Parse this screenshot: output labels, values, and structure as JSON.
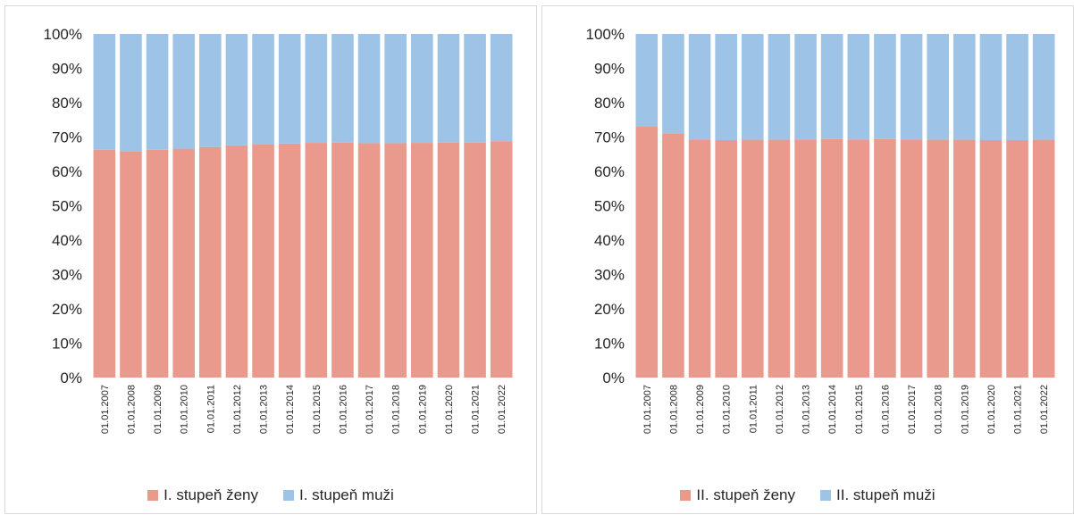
{
  "chart_data": [
    {
      "type": "bar",
      "stacked": true,
      "normalized": true,
      "categories": [
        "01.01.2007",
        "01.01.2008",
        "01.01.2009",
        "01.01.2010",
        "01.01.2011",
        "01.01.2012",
        "01.01.2013",
        "01.01.2014",
        "01.01.2015",
        "01.01.2016",
        "01.01.2017",
        "01.01.2018",
        "01.01.2019",
        "01.01.2020",
        "01.01.2021",
        "01.01.2022"
      ],
      "series": [
        {
          "name": "I. stupeň ženy",
          "color": "#ea9a8c",
          "values": [
            66.3,
            65.9,
            66.3,
            66.6,
            67.1,
            67.6,
            67.8,
            68.1,
            68.3,
            68.4,
            68.2,
            68.2,
            68.3,
            68.4,
            68.4,
            68.8
          ]
        },
        {
          "name": "I. stupeň muži",
          "color": "#9dc3e6",
          "values": [
            33.7,
            34.1,
            33.7,
            33.4,
            32.9,
            32.4,
            32.2,
            31.9,
            31.7,
            31.6,
            31.8,
            31.8,
            31.7,
            31.6,
            31.6,
            31.2
          ]
        }
      ],
      "yticks": [
        "0%",
        "10%",
        "20%",
        "30%",
        "40%",
        "50%",
        "60%",
        "70%",
        "80%",
        "90%",
        "100%"
      ],
      "ylim": [
        0,
        100
      ],
      "grid": false,
      "legend": "bottom"
    },
    {
      "type": "bar",
      "stacked": true,
      "normalized": true,
      "categories": [
        "01.01.2007",
        "01.01.2008",
        "01.01.2009",
        "01.01.2010",
        "01.01.2011",
        "01.01.2012",
        "01.01.2013",
        "01.01.2014",
        "01.01.2015",
        "01.01.2016",
        "01.01.2017",
        "01.01.2018",
        "01.01.2019",
        "01.01.2020",
        "01.01.2021",
        "01.01.2022"
      ],
      "series": [
        {
          "name": "II. stupeň ženy",
          "color": "#ea9a8c",
          "values": [
            73.1,
            71.1,
            69.3,
            69.1,
            69.2,
            69.2,
            69.3,
            69.4,
            69.3,
            69.4,
            69.3,
            69.2,
            69.2,
            69.1,
            69.1,
            69.2
          ]
        },
        {
          "name": "II. stupeň muži",
          "color": "#9dc3e6",
          "values": [
            26.9,
            28.9,
            30.7,
            30.9,
            30.8,
            30.8,
            30.7,
            30.6,
            30.7,
            30.6,
            30.7,
            30.8,
            30.8,
            30.9,
            30.9,
            30.8
          ]
        }
      ],
      "yticks": [
        "0%",
        "10%",
        "20%",
        "30%",
        "40%",
        "50%",
        "60%",
        "70%",
        "80%",
        "90%",
        "100%"
      ],
      "ylim": [
        0,
        100
      ],
      "grid": false,
      "legend": "bottom"
    }
  ]
}
